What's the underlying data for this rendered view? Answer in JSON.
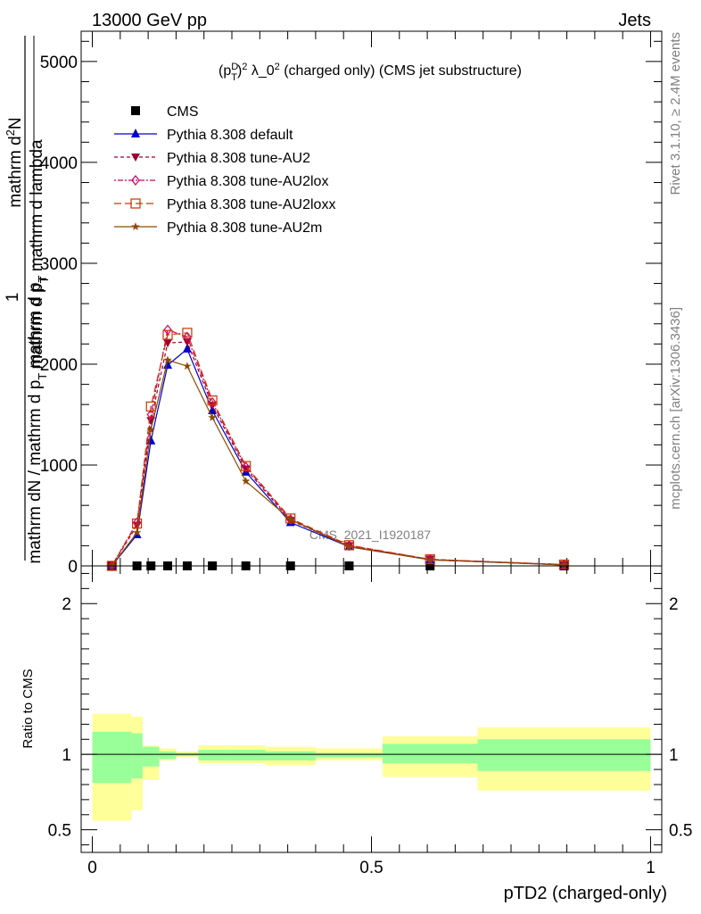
{
  "header": {
    "left": "13000 GeV pp",
    "right": "Jets"
  },
  "side_labels": {
    "rivet": "Rivet 3.1.10, ≥ 2.4M events",
    "mcplots": "mcplots.cern.ch [arXiv:1306.3436]"
  },
  "watermark": "CMS_2021_I1920187",
  "colors": {
    "cms": "#000000",
    "default": "#0000cc",
    "au2": "#990033",
    "au2lox": "#cc0066",
    "au2loxx": "#cc3300",
    "au2m": "#8b4a00",
    "band_inner": "#99ff99",
    "band_outer": "#ffff99"
  },
  "chart_data": [
    {
      "type": "line",
      "title": "(p_T^D)^2 λ_0^2 (charged only) (CMS jet substructure)",
      "ylabel": "1 / mathrm dN / mathrm d p_T mathrm d p_T mathrm d lambda mathrm d^2N",
      "ylim": [
        0,
        5300
      ],
      "xlim": [
        -0.02,
        1.02
      ],
      "y_ticks": [
        0,
        1000,
        2000,
        3000,
        4000,
        5000
      ],
      "y_tick_labels": [
        "0",
        "1000",
        "2000",
        "3000",
        "4000",
        "5000"
      ],
      "legend_placement": "top-left",
      "series": [
        {
          "name": "CMS",
          "key": "cms",
          "marker": "square",
          "dash": "none",
          "x": [
            0.035,
            0.08,
            0.105,
            0.135,
            0.17,
            0.215,
            0.275,
            0.355,
            0.46,
            0.605,
            0.845
          ],
          "y": [
            0,
            0,
            0,
            0,
            0,
            0,
            0,
            0,
            0,
            0,
            0
          ]
        },
        {
          "name": "Pythia 8.308 default",
          "key": "default",
          "marker": "triangle-up",
          "dash": "none",
          "x": [
            0.035,
            0.08,
            0.105,
            0.135,
            0.17,
            0.215,
            0.275,
            0.355,
            0.46,
            0.605,
            0.845
          ],
          "y": [
            0,
            310,
            1240,
            1990,
            2150,
            1540,
            930,
            430,
            190,
            60,
            10
          ]
        },
        {
          "name": "Pythia 8.308 tune-AU2",
          "key": "au2",
          "marker": "triangle-down",
          "dash": "4,3",
          "x": [
            0.035,
            0.08,
            0.105,
            0.135,
            0.17,
            0.215,
            0.275,
            0.355,
            0.46,
            0.605,
            0.845
          ],
          "y": [
            0,
            400,
            1440,
            2210,
            2220,
            1590,
            960,
            450,
            200,
            65,
            12
          ]
        },
        {
          "name": "Pythia 8.308 tune-AU2lox",
          "key": "au2lox",
          "marker": "diamond",
          "dash": "2,2,6,2",
          "x": [
            0.035,
            0.08,
            0.105,
            0.135,
            0.17,
            0.215,
            0.275,
            0.355,
            0.46,
            0.605,
            0.845
          ],
          "y": [
            0,
            430,
            1500,
            2340,
            2270,
            1620,
            980,
            460,
            200,
            65,
            12
          ]
        },
        {
          "name": "Pythia 8.308 tune-AU2loxx",
          "key": "au2loxx",
          "marker": "open-square",
          "dash": "8,4",
          "x": [
            0.035,
            0.08,
            0.105,
            0.135,
            0.17,
            0.215,
            0.275,
            0.355,
            0.46,
            0.605,
            0.845
          ],
          "y": [
            0,
            420,
            1580,
            2290,
            2310,
            1640,
            990,
            470,
            205,
            65,
            13
          ]
        },
        {
          "name": "Pythia 8.308 tune-AU2m",
          "key": "au2m",
          "marker": "star",
          "dash": "none",
          "x": [
            0.035,
            0.08,
            0.105,
            0.135,
            0.17,
            0.215,
            0.275,
            0.355,
            0.46,
            0.605,
            0.845
          ],
          "y": [
            0,
            330,
            1350,
            2040,
            1980,
            1470,
            840,
            460,
            190,
            60,
            10
          ]
        }
      ]
    },
    {
      "type": "area",
      "ylabel": "Ratio to CMS",
      "xlabel": "pTD2 (charged-only)",
      "xlim": [
        -0.02,
        1.02
      ],
      "ylim": [
        0.35,
        2.25
      ],
      "x_ticks": [
        0,
        0.5,
        1
      ],
      "x_tick_labels": [
        "0",
        "0.5",
        "1"
      ],
      "y_ticks": [
        0.5,
        1,
        2
      ],
      "y_tick_labels": [
        "0.5",
        "1",
        "2"
      ],
      "reference_line": 1,
      "bins": [
        {
          "lo": 0.0,
          "hi": 0.07,
          "inner": [
            0.81,
            1.15
          ],
          "outer": [
            0.56,
            1.27
          ]
        },
        {
          "lo": 0.07,
          "hi": 0.09,
          "inner": [
            0.84,
            1.14
          ],
          "outer": [
            0.63,
            1.25
          ]
        },
        {
          "lo": 0.09,
          "hi": 0.12,
          "inner": [
            0.92,
            1.05
          ],
          "outer": [
            0.83,
            1.06
          ]
        },
        {
          "lo": 0.12,
          "hi": 0.15,
          "inner": [
            0.97,
            1.02
          ],
          "outer": [
            0.96,
            1.04
          ]
        },
        {
          "lo": 0.15,
          "hi": 0.19,
          "inner": [
            0.99,
            1.01
          ],
          "outer": [
            0.98,
            1.02
          ]
        },
        {
          "lo": 0.19,
          "hi": 0.24,
          "inner": [
            0.96,
            1.03
          ],
          "outer": [
            0.94,
            1.06
          ]
        },
        {
          "lo": 0.24,
          "hi": 0.31,
          "inner": [
            0.96,
            1.03
          ],
          "outer": [
            0.94,
            1.06
          ]
        },
        {
          "lo": 0.31,
          "hi": 0.4,
          "inner": [
            0.96,
            1.02
          ],
          "outer": [
            0.93,
            1.05
          ]
        },
        {
          "lo": 0.4,
          "hi": 0.52,
          "inner": [
            0.98,
            1.01
          ],
          "outer": [
            0.96,
            1.04
          ]
        },
        {
          "lo": 0.52,
          "hi": 0.69,
          "inner": [
            0.94,
            1.07
          ],
          "outer": [
            0.85,
            1.12
          ]
        },
        {
          "lo": 0.69,
          "hi": 1.0,
          "inner": [
            0.89,
            1.1
          ],
          "outer": [
            0.76,
            1.18
          ]
        }
      ]
    }
  ]
}
